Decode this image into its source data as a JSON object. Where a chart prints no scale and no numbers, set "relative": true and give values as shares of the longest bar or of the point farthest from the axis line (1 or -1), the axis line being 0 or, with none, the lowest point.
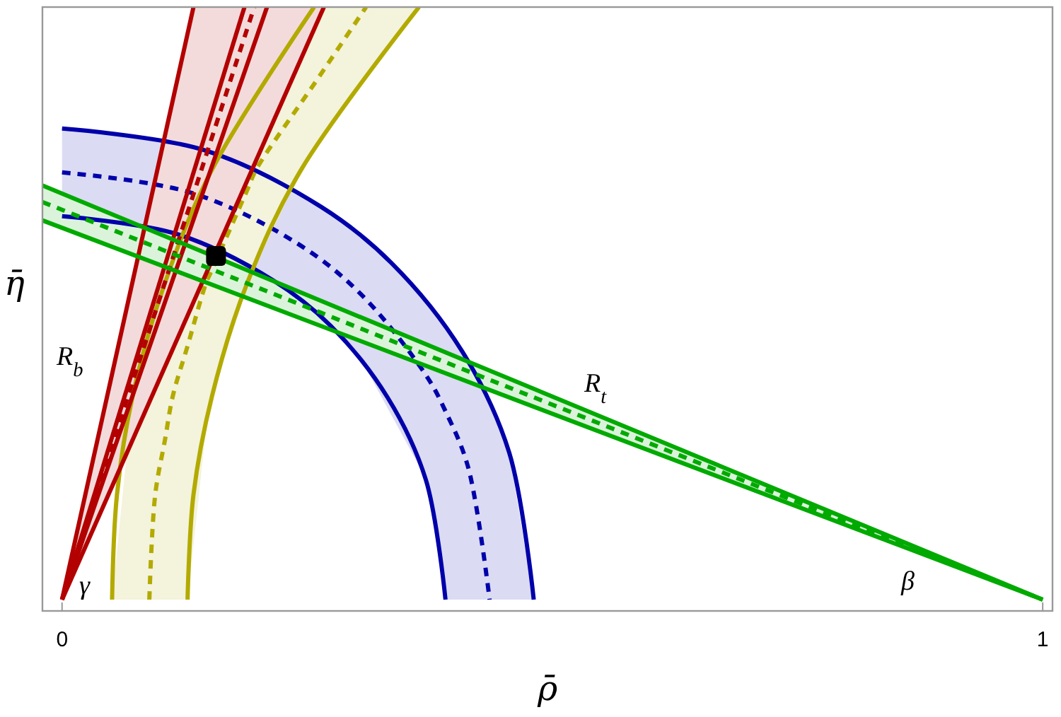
{
  "chart_data": {
    "type": "line",
    "relative": true,
    "xlabel": "ρ̄",
    "ylabel": "η̄",
    "xlim": [
      -0.02,
      1.01
    ],
    "xticks": [
      0,
      1
    ],
    "series": [
      {
        "color": "#0000aa",
        "x": [
          0,
          0.144,
          0.264,
          0.336,
          0.408,
          0.456,
          0.481
        ],
        "values": [
          0.795,
          0.759,
          0.663,
          0.568,
          0.419,
          0.248,
          0
        ]
      },
      {
        "color": "#0000aa",
        "line_style": "dashed",
        "x": [
          0,
          0.131,
          0.24,
          0.305,
          0.371,
          0.391,
          0.414,
          0.436,
          0.456,
          0.481
        ],
        "values": [
          0.721,
          0.687,
          0.601,
          0.515,
          0.379,
          0.318,
          0.224,
          0,
          null,
          null
        ],
        "lower": [
          0.647,
          0.609,
          0.511,
          0.405,
          0.205,
          0,
          0,
          0,
          0,
          0
        ],
        "upper": [
          0.795,
          0.765,
          0.689,
          0.614,
          0.505,
          0.462,
          0.403,
          0.334,
          0.248,
          0
        ]
      },
      {
        "color": "#0000aa",
        "x": [
          0,
          0.117,
          0.215,
          0.274,
          0.332,
          0.371,
          0.391
        ],
        "values": [
          0.647,
          0.617,
          0.539,
          0.462,
          0.341,
          0.202,
          0
        ]
      },
      {
        "color": "#b3aa00",
        "x": [
          0.051,
          0.056,
          0.072,
          0.105,
          0.153,
          0.257
        ],
        "values": [
          0,
          0.177,
          0.344,
          0.535,
          0.726,
          1
        ]
      },
      {
        "color": "#b3aa00",
        "line_style": "dashed",
        "x": [
          0.051,
          0.072,
          0.089,
          0.095,
          0.105,
          0.113,
          0.128,
          0.147,
          0.153,
          0.189,
          0.198,
          0.244,
          0.257,
          0.31,
          0.364
        ],
        "values": [
          null,
          null,
          0,
          0.177,
          0.27,
          0.344,
          0.428,
          0.535,
          0.557,
          0.692,
          0.726,
          0.839,
          0.87,
          1,
          null
        ],
        "lower": [
          0,
          0,
          0,
          0,
          0,
          0,
          0,
          0.291,
          0.344,
          0.535,
          0.566,
          0.726,
          0.756,
          0.877,
          1
        ],
        "upper": [
          0,
          0.344,
          0.442,
          0.477,
          0.535,
          0.567,
          0.627,
          0.702,
          0.726,
          0.821,
          0.845,
          0.966,
          1,
          1,
          1
        ]
      },
      {
        "color": "#b3aa00",
        "x": [
          0.128,
          0.134,
          0.153,
          0.189,
          0.244,
          0.364
        ],
        "values": [
          0,
          0.177,
          0.344,
          0.535,
          0.726,
          1
        ]
      },
      {
        "color": "#b30000",
        "x": [
          0,
          0.134
        ],
        "values": [
          0,
          1
        ]
      },
      {
        "color": "#b30000",
        "x": [
          0,
          0.186
        ],
        "values": [
          0,
          1
        ]
      },
      {
        "color": "#b30000",
        "line_style": "dashed",
        "x": [
          0,
          0.134,
          0.196,
          0.267
        ],
        "values": [
          0,
          0.684,
          1,
          null
        ],
        "lower": [
          0,
          0.502,
          0.734,
          1
        ],
        "upper": [
          0,
          1,
          1,
          1
        ]
      },
      {
        "color": "#b30000",
        "x": [
          0,
          0.209
        ],
        "values": [
          0,
          1
        ]
      },
      {
        "color": "#b30000",
        "x": [
          0,
          0.267
        ],
        "values": [
          0,
          1
        ]
      },
      {
        "color": "#00aa00",
        "x": [
          -0.02,
          1
        ],
        "values": [
          0.699,
          0
        ]
      },
      {
        "color": "#00aa00",
        "line_style": "dashed",
        "x": [
          -0.02,
          1
        ],
        "values": [
          0.671,
          0
        ],
        "lower": [
          0.64,
          0
        ],
        "upper": [
          0.699,
          0
        ]
      },
      {
        "color": "#00aa00",
        "x": [
          -0.02,
          1
        ],
        "values": [
          0.64,
          0
        ]
      },
      {
        "type": "scatter",
        "marker": "square",
        "color": "#000000",
        "x": [
          0.157
        ],
        "values": [
          0.58
        ]
      }
    ],
    "annotations": [
      "R$_{b}$",
      "R$_{t}$",
      "γ",
      "β"
    ]
  }
}
